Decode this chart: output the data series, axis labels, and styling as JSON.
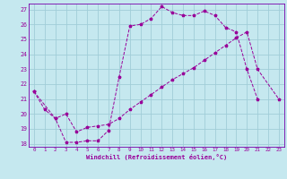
{
  "xlabel": "Windchill (Refroidissement éolien,°C)",
  "bg_color": "#c5e8ef",
  "grid_color": "#a0cdd8",
  "line_color": "#990099",
  "spine_color": "#7700aa",
  "xlim": [
    -0.5,
    23.5
  ],
  "ylim": [
    17.8,
    27.4
  ],
  "yticks": [
    18,
    19,
    20,
    21,
    22,
    23,
    24,
    25,
    26,
    27
  ],
  "xticks": [
    0,
    1,
    2,
    3,
    4,
    5,
    6,
    7,
    8,
    9,
    10,
    11,
    12,
    13,
    14,
    15,
    16,
    17,
    18,
    19,
    20,
    21,
    22,
    23
  ],
  "line1_x": [
    0,
    1,
    2,
    3,
    4,
    5,
    6,
    7,
    8,
    9,
    10,
    11,
    12,
    13,
    14,
    15,
    16,
    17,
    18,
    19,
    20,
    21
  ],
  "line1_y": [
    21.5,
    20.3,
    19.7,
    18.1,
    18.1,
    18.2,
    18.2,
    18.9,
    22.5,
    25.9,
    26.0,
    26.4,
    27.2,
    26.8,
    26.6,
    26.6,
    26.9,
    26.6,
    25.8,
    25.5,
    23.0,
    21.0
  ],
  "line2_x": [
    0,
    2,
    3,
    4,
    5,
    6,
    7,
    8,
    9,
    10,
    11,
    12,
    13,
    14,
    15,
    16,
    17,
    18,
    19,
    20,
    21,
    23
  ],
  "line2_y": [
    21.5,
    19.7,
    20.0,
    18.8,
    19.1,
    19.2,
    19.3,
    19.7,
    20.3,
    20.8,
    21.3,
    21.8,
    22.3,
    22.7,
    23.1,
    23.6,
    24.1,
    24.6,
    25.1,
    25.5,
    23.0,
    21.0
  ]
}
